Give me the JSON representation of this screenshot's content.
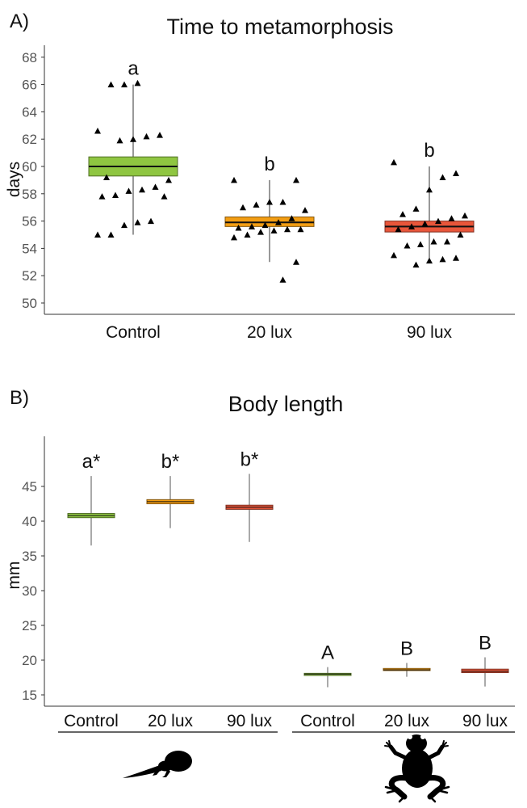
{
  "chart_data": [
    {
      "type": "box",
      "panel": "A)",
      "title": "Time to metamorphosis",
      "ylabel": "days",
      "xlabel": "",
      "ylim": [
        49,
        69
      ],
      "yticks": [
        50,
        52,
        54,
        56,
        58,
        60,
        62,
        64,
        66,
        68
      ],
      "categories": [
        "Control",
        "20 lux",
        "90 lux"
      ],
      "colors": [
        "#8fc641",
        "#f29d13",
        "#e8563a"
      ],
      "boxes": [
        {
          "min": 55.0,
          "q1": 59.3,
          "median": 60.0,
          "q3": 60.7,
          "max": 66.0
        },
        {
          "min": 53.0,
          "q1": 55.6,
          "median": 55.9,
          "q3": 56.3,
          "max": 59.0
        },
        {
          "min": 53.0,
          "q1": 55.2,
          "median": 55.6,
          "q3": 56.0,
          "max": 60.0
        }
      ],
      "letters": [
        "a",
        "b",
        "b"
      ],
      "points": [
        [
          55.0,
          55.0,
          55.7,
          55.9,
          56.0,
          57.8,
          57.8,
          57.9,
          58.2,
          58.3,
          58.5,
          59.0,
          59.2,
          61.9,
          62.0,
          62.2,
          62.3,
          62.6,
          66.0,
          66.0,
          66.1
        ],
        [
          51.7,
          53.0,
          54.8,
          55.0,
          55.2,
          55.3,
          55.4,
          55.4,
          55.5,
          55.6,
          55.7,
          55.9,
          56.2,
          56.8,
          57.0,
          57.2,
          57.4,
          57.4,
          59.0,
          59.0
        ],
        [
          52.8,
          53.1,
          53.2,
          53.3,
          53.5,
          54.2,
          54.3,
          54.5,
          54.5,
          55.0,
          55.4,
          55.6,
          55.8,
          56.0,
          56.2,
          56.4,
          56.5,
          56.9,
          58.3,
          59.2,
          59.5,
          60.3
        ]
      ]
    },
    {
      "type": "box",
      "panel": "B)",
      "title": "Body length",
      "ylabel": "mm",
      "xlabel": "",
      "ylim": [
        14,
        50
      ],
      "yticks": [
        15,
        20,
        25,
        30,
        35,
        40,
        45
      ],
      "groups": [
        "tadpole",
        "froglet"
      ],
      "categories": [
        "Control",
        "20 lux",
        "90 lux",
        "Control",
        "20 lux",
        "90 lux"
      ],
      "colors": [
        "#8fc641",
        "#f29d13",
        "#e8563a",
        "#8fc641",
        "#f29d13",
        "#e8563a"
      ],
      "boxes": [
        {
          "min": 36.5,
          "q1": 40.5,
          "median": 40.8,
          "q3": 41.1,
          "max": 46.5
        },
        {
          "min": 39.0,
          "q1": 42.5,
          "median": 42.8,
          "q3": 43.1,
          "max": 46.5
        },
        {
          "min": 37.0,
          "q1": 41.7,
          "median": 42.0,
          "q3": 42.3,
          "max": 46.8
        },
        {
          "min": 16.1,
          "q1": 17.8,
          "median": 18.0,
          "q3": 18.1,
          "max": 19.0
        },
        {
          "min": 17.6,
          "q1": 18.5,
          "median": 18.6,
          "q3": 18.8,
          "max": 19.6
        },
        {
          "min": 16.2,
          "q1": 18.2,
          "median": 18.4,
          "q3": 18.7,
          "max": 20.4
        }
      ],
      "letters": [
        "a*",
        "b*",
        "b*",
        "A",
        "B",
        "B"
      ]
    }
  ]
}
